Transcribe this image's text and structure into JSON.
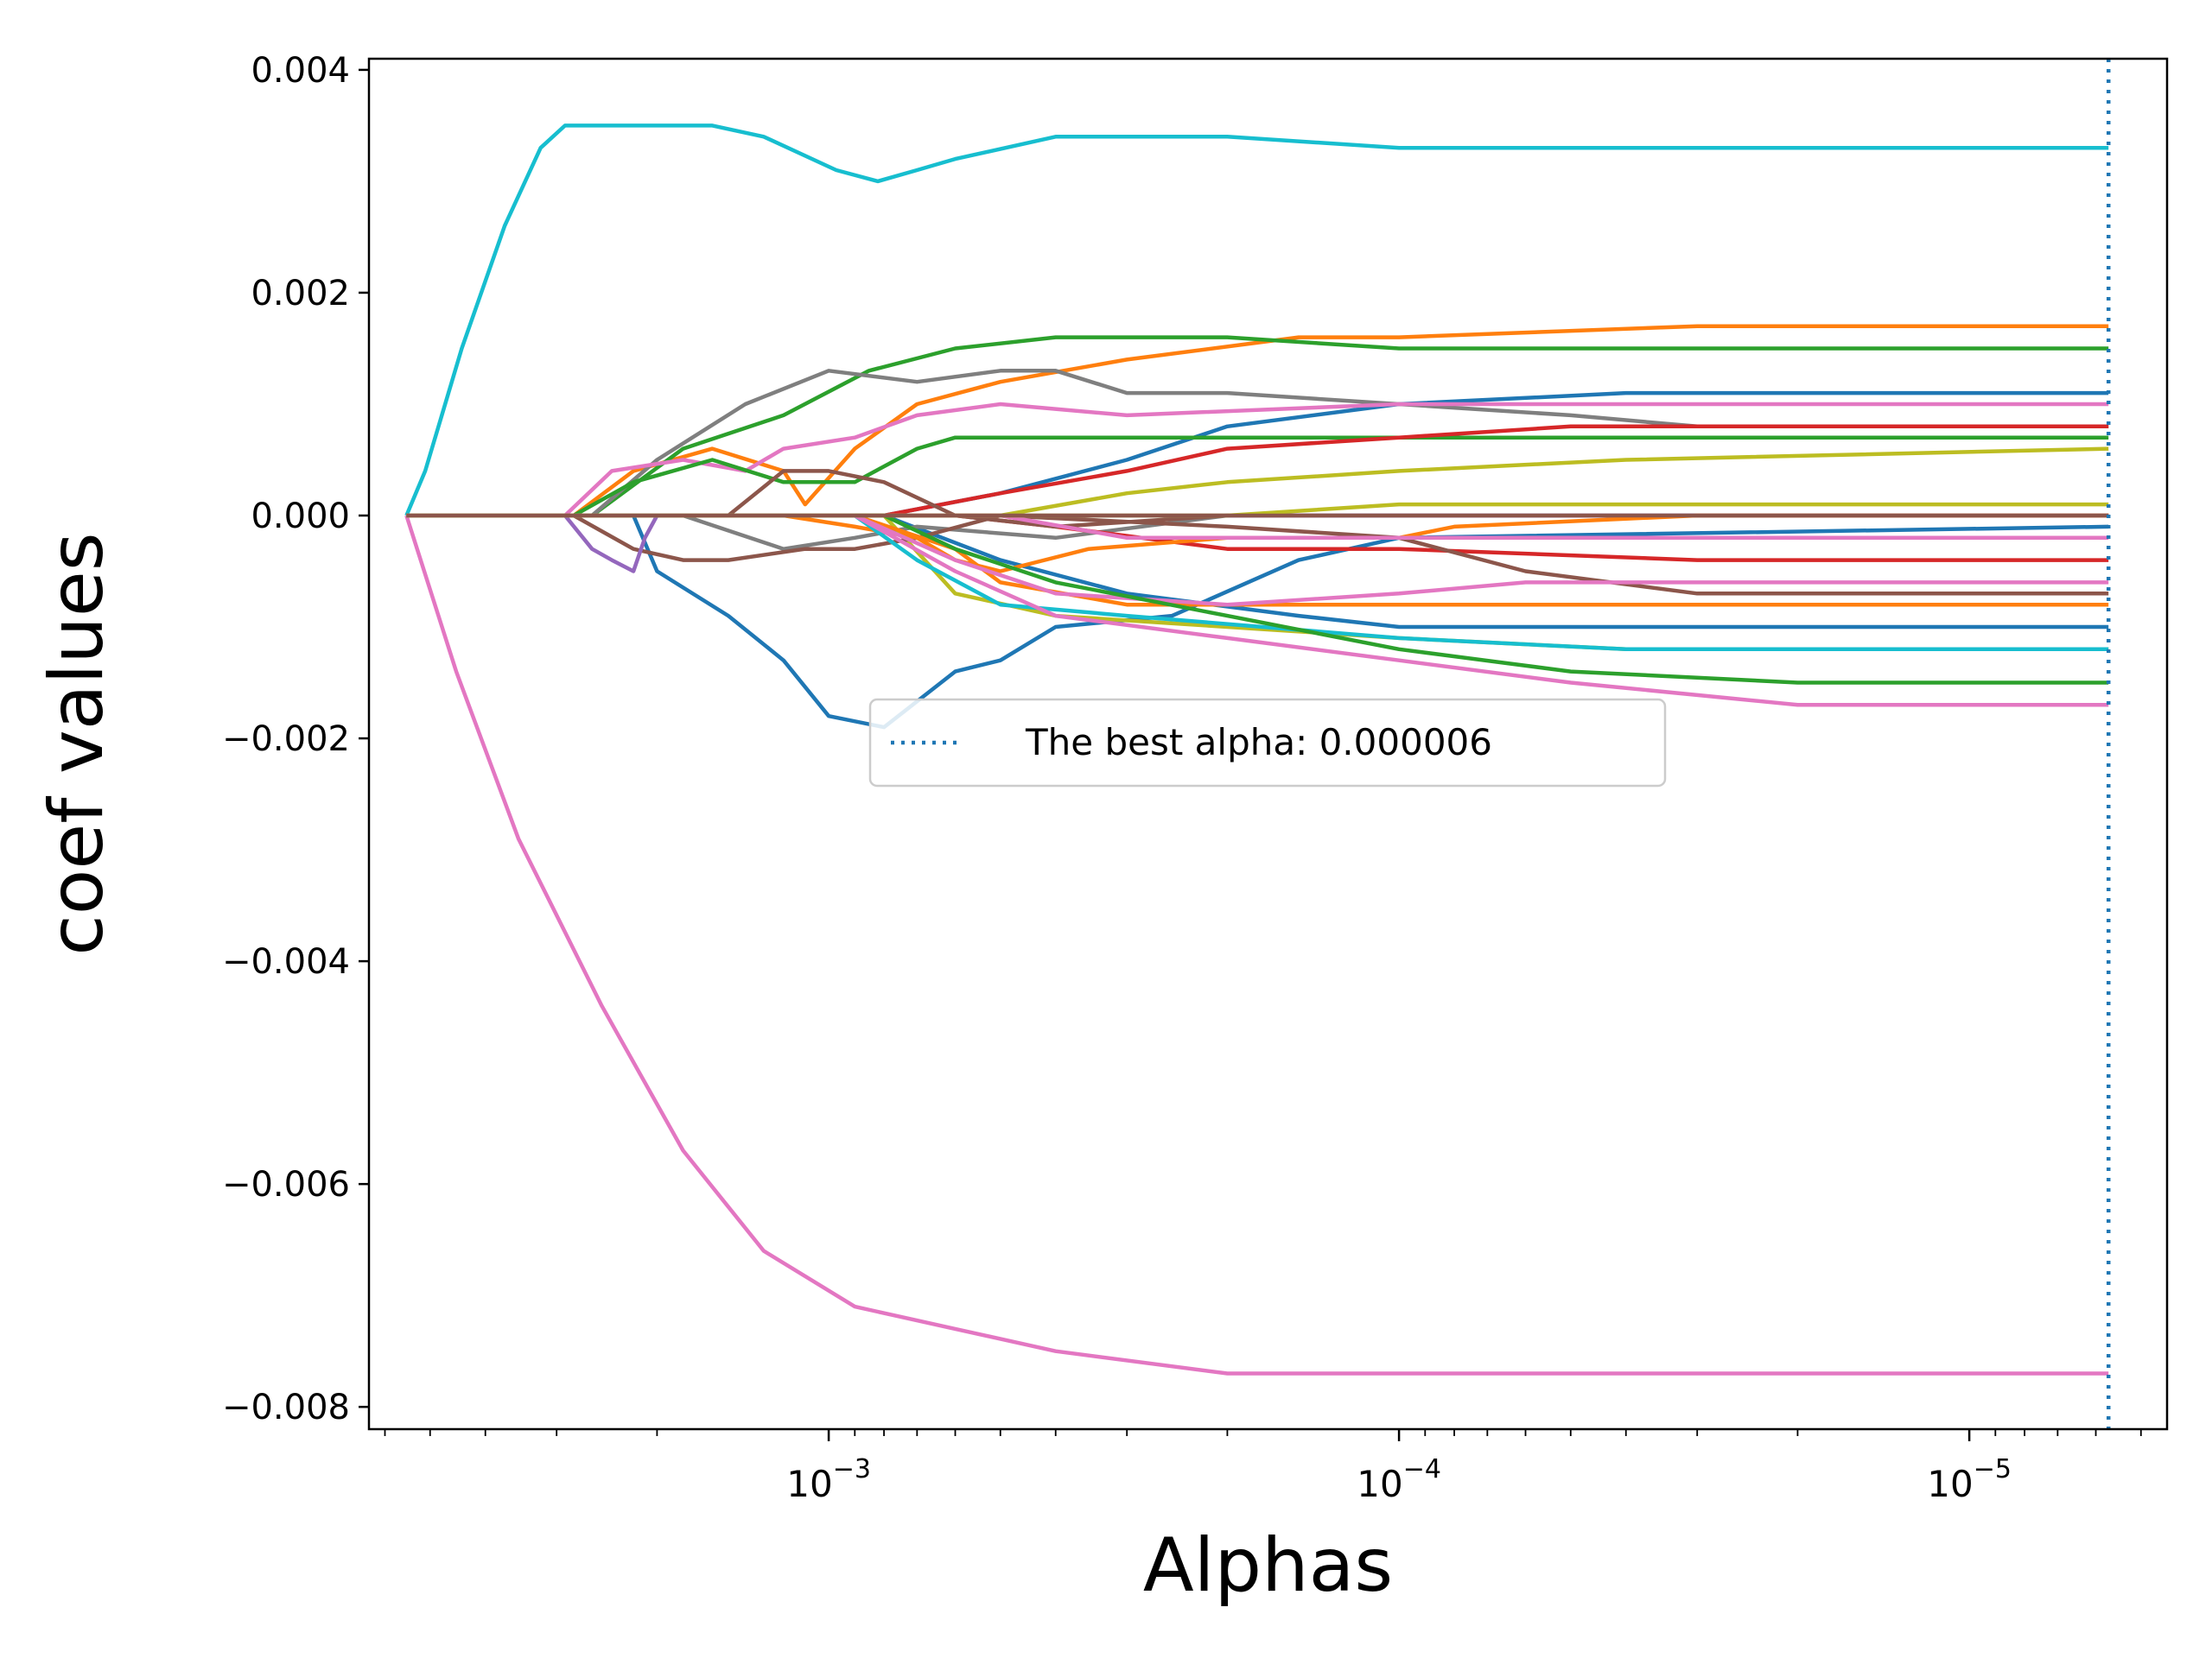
{
  "chart_data": {
    "type": "line",
    "title": "",
    "xlabel": "Alphas",
    "ylabel": "coef values",
    "x_scale": "log",
    "x_reversed": true,
    "xlim": [
      0.0064,
      4.5e-06
    ],
    "ylim": [
      -0.0082,
      0.0041
    ],
    "xticks": [
      {
        "value": 0.001,
        "base": "10",
        "exp": "−3"
      },
      {
        "value": 0.0001,
        "base": "10",
        "exp": "−4"
      },
      {
        "value": 1e-05,
        "base": "10",
        "exp": "−5"
      }
    ],
    "yticks": [
      {
        "value": 0.004,
        "label": "0.004"
      },
      {
        "value": 0.002,
        "label": "0.002"
      },
      {
        "value": 0.0,
        "label": "0.000"
      },
      {
        "value": -0.002,
        "label": "−0.002"
      },
      {
        "value": -0.004,
        "label": "−0.004"
      },
      {
        "value": -0.006,
        "label": "−0.006"
      },
      {
        "value": -0.008,
        "label": "−0.008"
      }
    ],
    "grid": false,
    "legend": {
      "position": "center",
      "label": "The best alpha: 0.000006"
    },
    "best_alpha": 5.7e-06,
    "best_alpha_color": "#1f77b4",
    "series": [
      {
        "color": "#17becf",
        "points": [
          [
            0.0055,
            0
          ],
          [
            0.0051,
            0.0004
          ],
          [
            0.0044,
            0.0015
          ],
          [
            0.0037,
            0.0026
          ],
          [
            0.0032,
            0.0033
          ],
          [
            0.0029,
            0.0035
          ],
          [
            0.0026,
            0.0035
          ],
          [
            0.002,
            0.0035
          ],
          [
            0.0016,
            0.0035
          ],
          [
            0.0013,
            0.0034
          ],
          [
            0.00097,
            0.0031
          ],
          [
            0.00082,
            0.003
          ],
          [
            0.0007,
            0.0031
          ],
          [
            0.0006,
            0.0032
          ],
          [
            0.0004,
            0.0034
          ],
          [
            0.0002,
            0.0034
          ],
          [
            0.0001,
            0.0033
          ],
          [
            3e-05,
            0.0033
          ],
          [
            5.7e-06,
            0.0033
          ]
        ]
      },
      {
        "color": "#e377c2",
        "points": [
          [
            0.0055,
            0
          ],
          [
            0.0045,
            -0.0014
          ],
          [
            0.0035,
            -0.0029
          ],
          [
            0.0025,
            -0.0044
          ],
          [
            0.0018,
            -0.0057
          ],
          [
            0.0013,
            -0.0066
          ],
          [
            0.0009,
            -0.0071
          ],
          [
            0.0006,
            -0.0073
          ],
          [
            0.0004,
            -0.0075
          ],
          [
            0.0002,
            -0.0077
          ],
          [
            0.0001,
            -0.0077
          ],
          [
            3e-05,
            -0.0077
          ],
          [
            5.7e-06,
            -0.0077
          ]
        ]
      },
      {
        "color": "#ff7f0e",
        "points": [
          [
            0.0055,
            0
          ],
          [
            0.0028,
            0
          ],
          [
            0.0022,
            0.0004
          ],
          [
            0.0016,
            0.0006
          ],
          [
            0.0012,
            0.0004
          ],
          [
            0.0011,
            0.0001
          ],
          [
            0.0009,
            0.0006
          ],
          [
            0.0007,
            0.001
          ],
          [
            0.0005,
            0.0012
          ],
          [
            0.0003,
            0.0014
          ],
          [
            0.00015,
            0.0016
          ],
          [
            0.0001,
            0.0016
          ],
          [
            3e-05,
            0.0017
          ],
          [
            5.7e-06,
            0.0017
          ]
        ]
      },
      {
        "color": "#2ca02c",
        "points": [
          [
            0.0055,
            0
          ],
          [
            0.0026,
            0
          ],
          [
            0.0018,
            0.0006
          ],
          [
            0.0012,
            0.0009
          ],
          [
            0.00085,
            0.0013
          ],
          [
            0.0006,
            0.0015
          ],
          [
            0.0004,
            0.0016
          ],
          [
            0.0002,
            0.0016
          ],
          [
            0.0001,
            0.0015
          ],
          [
            3e-05,
            0.0015
          ],
          [
            5.7e-06,
            0.0015
          ]
        ]
      },
      {
        "color": "#1f77b4",
        "points": [
          [
            0.0055,
            0
          ],
          [
            0.0022,
            0
          ],
          [
            0.002,
            -0.0005
          ],
          [
            0.0015,
            -0.0009
          ],
          [
            0.0012,
            -0.0013
          ],
          [
            0.001,
            -0.0018
          ],
          [
            0.0008,
            -0.0019
          ],
          [
            0.0006,
            -0.0014
          ],
          [
            0.0005,
            -0.0013
          ],
          [
            0.0004,
            -0.001
          ],
          [
            0.00025,
            -0.0009
          ],
          [
            0.00015,
            -0.0004
          ],
          [
            0.0001,
            -0.0002
          ],
          [
            5.7e-06,
            -0.0001
          ]
        ]
      },
      {
        "color": "#1f77b4",
        "points": [
          [
            0.0055,
            0
          ],
          [
            0.0008,
            0
          ],
          [
            0.0005,
            0.0002
          ],
          [
            0.0003,
            0.0005
          ],
          [
            0.0002,
            0.0008
          ],
          [
            0.0001,
            0.001
          ],
          [
            4e-05,
            0.0011
          ],
          [
            5.7e-06,
            0.0011
          ]
        ]
      },
      {
        "color": "#1f77b4",
        "points": [
          [
            0.0055,
            0
          ],
          [
            0.0008,
            0
          ],
          [
            0.0005,
            -0.0004
          ],
          [
            0.0003,
            -0.0007
          ],
          [
            0.00015,
            -0.0009
          ],
          [
            0.0001,
            -0.001
          ],
          [
            3e-05,
            -0.001
          ],
          [
            5.7e-06,
            -0.001
          ]
        ]
      },
      {
        "color": "#7f7f7f",
        "points": [
          [
            0.0055,
            0
          ],
          [
            0.0026,
            0
          ],
          [
            0.002,
            0.0005
          ],
          [
            0.0014,
            0.001
          ],
          [
            0.001,
            0.0013
          ],
          [
            0.0007,
            0.0012
          ],
          [
            0.0005,
            0.0013
          ],
          [
            0.0004,
            0.0013
          ],
          [
            0.0003,
            0.0011
          ],
          [
            0.0002,
            0.0011
          ],
          [
            0.0001,
            0.001
          ],
          [
            5e-05,
            0.0009
          ],
          [
            3e-05,
            0.0008
          ],
          [
            5.7e-06,
            0.0008
          ]
        ]
      },
      {
        "color": "#7f7f7f",
        "points": [
          [
            0.0055,
            0
          ],
          [
            0.0018,
            0
          ],
          [
            0.0012,
            -0.0003
          ],
          [
            0.0009,
            -0.0002
          ],
          [
            0.0007,
            -0.0001
          ],
          [
            0.0004,
            -0.0002
          ],
          [
            0.0002,
            0
          ],
          [
            5.7e-06,
            0
          ]
        ]
      },
      {
        "color": "#e377c2",
        "points": [
          [
            0.0055,
            0
          ],
          [
            0.0029,
            0
          ],
          [
            0.0024,
            0.0004
          ],
          [
            0.0018,
            0.0005
          ],
          [
            0.0014,
            0.0004
          ],
          [
            0.0012,
            0.0006
          ],
          [
            0.0009,
            0.0007
          ],
          [
            0.0007,
            0.0009
          ],
          [
            0.0005,
            0.001
          ],
          [
            0.0003,
            0.0009
          ],
          [
            0.0001,
            0.001
          ],
          [
            3e-05,
            0.001
          ],
          [
            5.7e-06,
            0.001
          ]
        ]
      },
      {
        "color": "#2ca02c",
        "points": [
          [
            0.0055,
            0
          ],
          [
            0.0028,
            0
          ],
          [
            0.0022,
            0.0003
          ],
          [
            0.0016,
            0.0005
          ],
          [
            0.0012,
            0.0003
          ],
          [
            0.0009,
            0.0003
          ],
          [
            0.0007,
            0.0006
          ],
          [
            0.0006,
            0.0007
          ],
          [
            0.0004,
            0.0007
          ],
          [
            0.0002,
            0.0007
          ],
          [
            0.0001,
            0.0007
          ],
          [
            5.7e-06,
            0.0007
          ]
        ]
      },
      {
        "color": "#d62728",
        "points": [
          [
            0.0055,
            0
          ],
          [
            0.0008,
            0
          ],
          [
            0.0005,
            0.0002
          ],
          [
            0.0003,
            0.0004
          ],
          [
            0.0002,
            0.0006
          ],
          [
            0.0001,
            0.0007
          ],
          [
            5e-05,
            0.0008
          ],
          [
            5.7e-06,
            0.0008
          ]
        ]
      },
      {
        "color": "#d62728",
        "points": [
          [
            0.0055,
            0
          ],
          [
            0.0006,
            0
          ],
          [
            0.0004,
            -0.0001
          ],
          [
            0.0002,
            -0.0003
          ],
          [
            0.0001,
            -0.0003
          ],
          [
            3e-05,
            -0.0004
          ],
          [
            5.7e-06,
            -0.0004
          ]
        ]
      },
      {
        "color": "#bcbd22",
        "points": [
          [
            0.0055,
            0
          ],
          [
            0.0005,
            0
          ],
          [
            0.0003,
            0.0002
          ],
          [
            0.0002,
            0.0003
          ],
          [
            0.0001,
            0.0004
          ],
          [
            4e-05,
            0.0005
          ],
          [
            5.7e-06,
            0.0006
          ]
        ]
      },
      {
        "color": "#bcbd22",
        "points": [
          [
            0.0055,
            0
          ],
          [
            0.0008,
            0
          ],
          [
            0.0006,
            -0.0007
          ],
          [
            0.0004,
            -0.0009
          ],
          [
            0.0002,
            -0.001
          ],
          [
            0.0001,
            -0.0011
          ],
          [
            4e-05,
            -0.0012
          ],
          [
            5.7e-06,
            -0.0012
          ]
        ]
      },
      {
        "color": "#8c564b",
        "points": [
          [
            0.0055,
            0
          ],
          [
            0.0028,
            0
          ],
          [
            0.0022,
            -0.0003
          ],
          [
            0.0018,
            -0.0004
          ],
          [
            0.0015,
            -0.0004
          ],
          [
            0.0011,
            -0.0003
          ],
          [
            0.0009,
            -0.0003
          ],
          [
            0.0007,
            -0.0002
          ],
          [
            0.0005,
            0
          ],
          [
            0.0002,
            -0.0001
          ],
          [
            0.0001,
            -0.0002
          ],
          [
            6e-05,
            -0.0005
          ],
          [
            3e-05,
            -0.0007
          ],
          [
            5.7e-06,
            -0.0007
          ]
        ]
      },
      {
        "color": "#8c564b",
        "points": [
          [
            0.0055,
            0
          ],
          [
            0.0015,
            0
          ],
          [
            0.0012,
            0.0004
          ],
          [
            0.001,
            0.0004
          ],
          [
            0.0008,
            0.0003
          ],
          [
            0.0006,
            0
          ],
          [
            0.0004,
            -0.0001
          ],
          [
            0.0002,
            0
          ],
          [
            5.7e-06,
            0
          ]
        ]
      },
      {
        "color": "#9467bd",
        "points": [
          [
            0.0055,
            0
          ],
          [
            0.0029,
            0
          ],
          [
            0.0026,
            -0.0003
          ],
          [
            0.0024,
            -0.0004
          ],
          [
            0.0022,
            -0.0005
          ],
          [
            0.0021,
            -0.0002
          ],
          [
            0.002,
            0
          ],
          [
            5.7e-06,
            0
          ]
        ]
      },
      {
        "color": "#ff7f0e",
        "points": [
          [
            0.0055,
            0
          ],
          [
            0.0016,
            0
          ],
          [
            0.0012,
            0
          ],
          [
            0.0009,
            -0.0001
          ],
          [
            0.0007,
            -0.0002
          ],
          [
            0.0006,
            -0.0004
          ],
          [
            0.0005,
            -0.0005
          ],
          [
            0.00035,
            -0.0003
          ],
          [
            0.0002,
            -0.0002
          ],
          [
            0.0001,
            -0.0002
          ],
          [
            8e-05,
            -0.0001
          ],
          [
            3e-05,
            0
          ],
          [
            5.7e-06,
            0
          ]
        ]
      },
      {
        "color": "#ff7f0e",
        "points": [
          [
            0.0055,
            0
          ],
          [
            0.0009,
            0
          ],
          [
            0.0006,
            -0.0003
          ],
          [
            0.0005,
            -0.0006
          ],
          [
            0.0003,
            -0.0008
          ],
          [
            0.0001,
            -0.0008
          ],
          [
            3e-05,
            -0.0008
          ],
          [
            5.7e-06,
            -0.0008
          ]
        ]
      },
      {
        "color": "#e377c2",
        "points": [
          [
            0.0055,
            0
          ],
          [
            0.0009,
            0
          ],
          [
            0.0006,
            -0.0004
          ],
          [
            0.0004,
            -0.0007
          ],
          [
            0.0002,
            -0.0008
          ],
          [
            0.0001,
            -0.0007
          ],
          [
            6e-05,
            -0.0006
          ],
          [
            5.7e-06,
            -0.0006
          ]
        ]
      },
      {
        "color": "#e377c2",
        "points": [
          [
            0.0055,
            0
          ],
          [
            0.0005,
            0
          ],
          [
            0.0003,
            -0.0002
          ],
          [
            0.0001,
            -0.0002
          ],
          [
            5.7e-06,
            -0.0002
          ]
        ]
      },
      {
        "color": "#17becf",
        "points": [
          [
            0.0055,
            0
          ],
          [
            0.0009,
            0
          ],
          [
            0.0007,
            -0.0004
          ],
          [
            0.0005,
            -0.0008
          ],
          [
            0.0003,
            -0.0009
          ],
          [
            0.0001,
            -0.0011
          ],
          [
            4e-05,
            -0.0012
          ],
          [
            5.7e-06,
            -0.0012
          ]
        ]
      },
      {
        "color": "#2ca02c",
        "points": [
          [
            0.0055,
            0
          ],
          [
            0.0008,
            0
          ],
          [
            0.0006,
            -0.0003
          ],
          [
            0.0004,
            -0.0006
          ],
          [
            0.0002,
            -0.0009
          ],
          [
            0.0001,
            -0.0012
          ],
          [
            5e-05,
            -0.0014
          ],
          [
            2e-05,
            -0.0015
          ],
          [
            5.7e-06,
            -0.0015
          ]
        ]
      },
      {
        "color": "#e377c2",
        "points": [
          [
            0.0055,
            0
          ],
          [
            0.0009,
            0
          ],
          [
            0.0006,
            -0.0005
          ],
          [
            0.0004,
            -0.0009
          ],
          [
            0.0002,
            -0.0011
          ],
          [
            0.0001,
            -0.0013
          ],
          [
            5e-05,
            -0.0015
          ],
          [
            2e-05,
            -0.0017
          ],
          [
            5.7e-06,
            -0.0017
          ]
        ]
      },
      {
        "color": "#bcbd22",
        "points": [
          [
            0.0055,
            0
          ],
          [
            0.0002,
            0
          ],
          [
            0.0001,
            0.0001
          ],
          [
            3e-05,
            0.0001
          ],
          [
            5.7e-06,
            0.0001
          ]
        ]
      },
      {
        "color": "#8c564b",
        "points": [
          [
            0.0055,
            0
          ],
          [
            5.7e-06,
            0
          ]
        ]
      }
    ]
  }
}
